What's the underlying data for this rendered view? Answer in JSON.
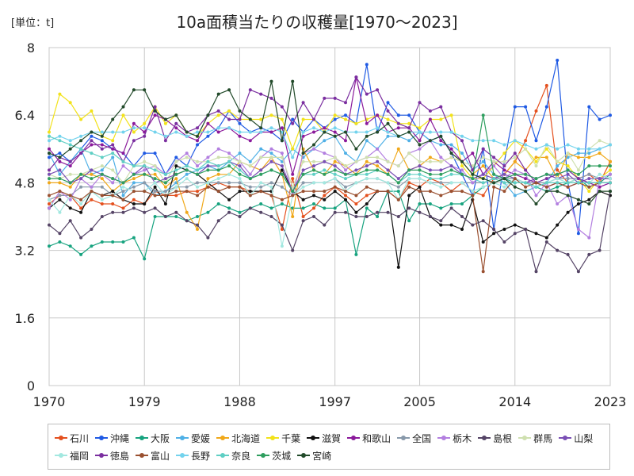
{
  "header": {
    "unit_label": "[単位：t]",
    "title": "10a面積当たりの収穫量[1970〜2023]"
  },
  "chart_data": {
    "type": "line",
    "title": "10a面積当たりの収穫量[1970〜2023]",
    "ylabel": "単位：t",
    "xlim": [
      1970,
      2023
    ],
    "ylim": [
      0,
      8
    ],
    "x_ticks": [
      1970,
      1979,
      1988,
      1997,
      2005,
      2014,
      2023
    ],
    "y_ticks": [
      0,
      1.6,
      3.2,
      4.8,
      6.4,
      8
    ],
    "y_tick_labels": [
      "0",
      "1.6",
      "3.2",
      "4.8",
      "6.4",
      "8"
    ],
    "grid": true,
    "legend_position": "bottom",
    "x": [
      1970,
      1971,
      1972,
      1973,
      1974,
      1975,
      1976,
      1977,
      1978,
      1979,
      1980,
      1981,
      1982,
      1983,
      1984,
      1985,
      1986,
      1987,
      1988,
      1989,
      1990,
      1991,
      1992,
      1993,
      1994,
      1995,
      1996,
      1997,
      1998,
      1999,
      2000,
      2001,
      2002,
      2003,
      2004,
      2005,
      2006,
      2007,
      2008,
      2009,
      2010,
      2011,
      2012,
      2013,
      2014,
      2015,
      2016,
      2017,
      2018,
      2019,
      2020,
      2021,
      2022,
      2023
    ],
    "series": [
      {
        "name": "石川",
        "color": "#e4501e",
        "values": [
          4.3,
          4.5,
          4.5,
          4.2,
          4.4,
          4.3,
          4.3,
          4.2,
          4.4,
          4.3,
          4.6,
          4.5,
          4.5,
          4.6,
          4.6,
          4.7,
          4.8,
          4.7,
          4.7,
          4.6,
          4.6,
          4.5,
          3.7,
          4.9,
          4.0,
          4.2,
          4.5,
          4.7,
          4.5,
          4.3,
          4.5,
          4.6,
          4.6,
          4.4,
          4.8,
          4.7,
          4.9,
          4.8,
          4.6,
          4.8,
          4.6,
          4.5,
          4.9,
          5.0,
          5.3,
          5.8,
          6.5,
          7.1,
          5.1,
          4.8,
          4.9,
          5.0,
          4.8,
          5.3
        ]
      },
      {
        "name": "沖縄",
        "color": "#1f5ae4",
        "values": [
          5.4,
          5.5,
          5.3,
          5.6,
          5.9,
          5.8,
          5.6,
          5.5,
          5.2,
          5.5,
          5.5,
          5.0,
          5.4,
          5.2,
          5.7,
          5.9,
          6.1,
          6.5,
          6.2,
          6.0,
          6.1,
          6.0,
          5.8,
          6.3,
          6.0,
          6.3,
          6.1,
          6.3,
          6.4,
          6.2,
          7.6,
          6.0,
          6.7,
          6.4,
          6.4,
          6.0,
          5.8,
          5.9,
          5.5,
          5.0,
          4.5,
          5.6,
          3.7,
          5.3,
          6.6,
          6.6,
          5.8,
          6.6,
          7.7,
          4.8,
          3.6,
          6.6,
          6.3,
          6.4
        ]
      },
      {
        "name": "大阪",
        "color": "#17a37f",
        "values": [
          3.3,
          3.4,
          3.3,
          3.1,
          3.3,
          3.4,
          3.4,
          3.4,
          3.5,
          3.0,
          4.0,
          4.0,
          4.0,
          3.9,
          4.0,
          4.1,
          4.3,
          4.2,
          4.1,
          4.2,
          4.3,
          4.2,
          4.3,
          4.2,
          4.2,
          4.3,
          4.2,
          4.2,
          4.4,
          3.1,
          4.2,
          4.0,
          4.6,
          4.6,
          3.9,
          4.3,
          4.3,
          4.2,
          4.3,
          4.3,
          4.5,
          4.7,
          4.8,
          4.9,
          4.8,
          4.8,
          4.7,
          4.6,
          4.7,
          4.8,
          4.9,
          4.7,
          4.8,
          5.0
        ]
      },
      {
        "name": "愛媛",
        "color": "#4fb0e6",
        "values": [
          5.5,
          5.0,
          5.3,
          5.6,
          5.0,
          5.1,
          5.4,
          4.5,
          4.8,
          4.8,
          4.5,
          4.6,
          4.8,
          5.0,
          5.1,
          5.2,
          5.1,
          5.3,
          5.5,
          5.3,
          5.6,
          5.5,
          5.3,
          5.6,
          5.4,
          5.6,
          5.8,
          5.9,
          5.5,
          5.3,
          5.8,
          5.6,
          5.9,
          5.9,
          5.8,
          6.0,
          5.8,
          5.7,
          5.7,
          5.5,
          5.1,
          5.3,
          5.0,
          4.8,
          4.5,
          4.6,
          4.7,
          4.8,
          5.2,
          5.4,
          5.5,
          5.5,
          5.6,
          5.7
        ]
      },
      {
        "name": "北海道",
        "color": "#f0a81a",
        "values": [
          4.8,
          4.8,
          4.7,
          5.0,
          5.0,
          4.9,
          4.6,
          4.8,
          4.9,
          5.0,
          5.0,
          4.7,
          4.9,
          4.1,
          3.7,
          4.9,
          5.0,
          5.0,
          5.3,
          5.2,
          5.1,
          5.4,
          5.0,
          4.0,
          5.6,
          5.1,
          5.0,
          5.3,
          5.2,
          5.0,
          5.3,
          5.2,
          5.0,
          5.6,
          5.1,
          5.2,
          5.4,
          5.3,
          5.4,
          5.3,
          5.0,
          5.2,
          4.9,
          5.0,
          5.3,
          5.1,
          5.4,
          5.4,
          4.9,
          5.5,
          5.4,
          5.4,
          5.5,
          5.3
        ]
      },
      {
        "name": "千葉",
        "color": "#f2e21a",
        "values": [
          6.0,
          6.9,
          6.7,
          6.3,
          6.5,
          5.9,
          5.8,
          6.4,
          6.0,
          6.2,
          6.6,
          6.2,
          6.4,
          6.0,
          5.9,
          6.2,
          6.4,
          6.5,
          6.3,
          6.3,
          6.3,
          6.4,
          6.3,
          5.6,
          6.3,
          6.3,
          6.0,
          6.4,
          6.3,
          6.2,
          6.3,
          6.4,
          6.3,
          6.2,
          6.2,
          6.1,
          6.3,
          6.3,
          6.4,
          5.2,
          4.9,
          4.9,
          5.2,
          5.5,
          5.8,
          5.6,
          5.3,
          5.6,
          5.3,
          5.2,
          4.9,
          4.6,
          4.9,
          5.1
        ]
      },
      {
        "name": "滋賀",
        "color": "#111111",
        "values": [
          4.2,
          4.4,
          4.2,
          4.1,
          4.6,
          4.5,
          4.6,
          4.4,
          4.3,
          4.3,
          4.7,
          4.3,
          5.2,
          5.1,
          5.0,
          4.8,
          4.6,
          4.4,
          4.6,
          4.6,
          4.6,
          4.6,
          5.1,
          4.6,
          4.4,
          4.5,
          4.4,
          4.6,
          4.4,
          4.1,
          4.3,
          4.6,
          4.6,
          2.8,
          4.5,
          4.7,
          4.0,
          3.8,
          3.8,
          3.7,
          4.4,
          3.4,
          3.6,
          3.7,
          3.8,
          3.7,
          3.6,
          3.5,
          3.8,
          4.1,
          4.3,
          4.4,
          4.6,
          4.5
        ]
      },
      {
        "name": "和歌山",
        "color": "#8b1a9b",
        "values": [
          5.6,
          5.3,
          5.2,
          5.5,
          5.7,
          5.7,
          5.6,
          5.5,
          6.2,
          6.0,
          6.4,
          6.3,
          6.1,
          5.9,
          5.8,
          6.2,
          6.0,
          6.1,
          5.9,
          5.8,
          6.0,
          6.0,
          6.1,
          5.0,
          5.9,
          6.0,
          6.1,
          6.0,
          5.8,
          7.3,
          6.2,
          6.4,
          6.0,
          6.1,
          6.1,
          5.8,
          6.3,
          5.8,
          5.6,
          5.3,
          5.5,
          5.0,
          5.3,
          5.1,
          5.0,
          4.9,
          4.8,
          4.7,
          4.8,
          4.7,
          4.8,
          4.8,
          4.7,
          4.8
        ]
      },
      {
        "name": "全国",
        "color": "#8899aa",
        "values": [
          4.4,
          4.5,
          4.5,
          4.7,
          4.7,
          4.7,
          4.5,
          4.6,
          4.7,
          4.8,
          4.6,
          4.6,
          4.7,
          4.7,
          4.8,
          4.8,
          4.8,
          4.8,
          4.8,
          4.7,
          4.7,
          4.8,
          4.7,
          4.5,
          4.8,
          4.8,
          4.8,
          4.9,
          4.7,
          4.8,
          4.9,
          4.9,
          4.8,
          4.7,
          4.9,
          4.9,
          4.8,
          4.8,
          4.8,
          4.8,
          4.8,
          4.8,
          4.9,
          4.9,
          4.9,
          4.8,
          4.8,
          4.8,
          4.9,
          4.9,
          4.9,
          5.0,
          4.9,
          4.9
        ]
      },
      {
        "name": "栃木",
        "color": "#b37fe0",
        "values": [
          4.2,
          4.6,
          4.4,
          4.9,
          4.7,
          5.0,
          4.8,
          5.2,
          5.0,
          5.1,
          5.2,
          5.0,
          5.3,
          5.5,
          5.2,
          5.4,
          5.6,
          5.5,
          5.3,
          5.0,
          5.4,
          5.6,
          5.5,
          4.5,
          5.5,
          5.6,
          5.5,
          5.4,
          5.1,
          5.3,
          5.4,
          5.6,
          5.3,
          5.2,
          5.5,
          5.6,
          5.8,
          5.4,
          5.2,
          5.1,
          4.8,
          5.0,
          5.2,
          4.9,
          5.1,
          5.0,
          4.5,
          4.8,
          4.3,
          4.5,
          3.7,
          3.5,
          4.9,
          5.0
        ]
      },
      {
        "name": "島根",
        "color": "#554466",
        "values": [
          3.8,
          3.6,
          3.9,
          3.5,
          3.7,
          4.0,
          4.1,
          4.1,
          4.2,
          4.1,
          4.2,
          4.0,
          4.1,
          3.9,
          3.8,
          3.5,
          3.9,
          4.1,
          4.0,
          4.2,
          4.1,
          4.0,
          3.8,
          3.2,
          3.9,
          4.0,
          3.8,
          4.1,
          4.1,
          4.0,
          4.0,
          4.1,
          4.1,
          4.0,
          4.2,
          4.1,
          4.0,
          3.9,
          4.2,
          4.0,
          3.8,
          3.9,
          3.7,
          3.4,
          3.6,
          3.7,
          2.7,
          3.4,
          3.2,
          3.1,
          2.7,
          3.1,
          3.2,
          4.6
        ]
      },
      {
        "name": "群馬",
        "color": "#cfe0b0",
        "values": [
          5.0,
          4.9,
          5.0,
          5.0,
          5.1,
          5.2,
          5.1,
          4.8,
          5.2,
          5.3,
          5.2,
          4.8,
          5.3,
          5.4,
          5.3,
          5.3,
          5.4,
          5.4,
          5.3,
          5.2,
          5.4,
          5.4,
          5.4,
          4.7,
          5.3,
          5.3,
          5.3,
          5.4,
          5.2,
          5.3,
          5.4,
          5.4,
          5.3,
          5.2,
          5.5,
          5.3,
          5.3,
          5.3,
          5.4,
          5.3,
          5.2,
          5.4,
          5.3,
          5.3,
          5.4,
          5.6,
          5.2,
          5.7,
          5.3,
          5.5,
          5.1,
          5.6,
          5.8,
          5.7
        ]
      },
      {
        "name": "山梨",
        "color": "#7a4fb5",
        "values": [
          5.0,
          5.1,
          4.8,
          4.9,
          5.1,
          5.0,
          4.9,
          4.8,
          5.0,
          5.2,
          4.8,
          4.9,
          5.0,
          5.1,
          5.0,
          5.2,
          5.2,
          5.3,
          5.2,
          4.9,
          5.1,
          5.3,
          5.2,
          4.6,
          5.1,
          5.2,
          5.3,
          5.2,
          5.0,
          5.1,
          5.2,
          5.3,
          5.1,
          4.9,
          5.1,
          5.2,
          5.1,
          5.1,
          5.2,
          5.0,
          4.9,
          5.0,
          4.9,
          5.0,
          4.9,
          4.8,
          4.9,
          5.0,
          4.9,
          5.0,
          4.8,
          4.9,
          4.9,
          4.9
        ]
      },
      {
        "name": "福岡",
        "color": "#a3e8e0",
        "values": [
          4.4,
          4.1,
          4.5,
          4.3,
          4.6,
          4.4,
          4.5,
          4.7,
          4.6,
          4.6,
          4.8,
          4.5,
          4.7,
          4.9,
          4.7,
          4.8,
          4.9,
          5.0,
          4.9,
          4.5,
          4.8,
          4.7,
          3.3,
          4.5,
          4.7,
          4.8,
          4.8,
          4.9,
          4.6,
          4.8,
          4.9,
          4.9,
          4.8,
          4.4,
          4.9,
          4.9,
          4.8,
          4.7,
          4.8,
          4.8,
          4.6,
          4.7,
          4.8,
          4.7,
          4.9,
          4.8,
          4.7,
          4.8,
          4.9,
          4.8,
          4.9,
          4.8,
          5.0,
          4.9
        ]
      },
      {
        "name": "徳島",
        "color": "#7b2fa0",
        "values": [
          5.1,
          5.4,
          5.3,
          5.5,
          5.8,
          5.6,
          5.7,
          5.3,
          5.8,
          5.9,
          6.6,
          5.8,
          6.2,
          6.0,
          6.1,
          6.4,
          6.5,
          6.3,
          6.3,
          7.0,
          6.9,
          6.8,
          6.6,
          6.2,
          6.7,
          6.3,
          6.8,
          6.8,
          6.7,
          7.3,
          6.9,
          7.0,
          6.5,
          6.2,
          6.1,
          6.7,
          6.5,
          6.6,
          6.0,
          5.8,
          5.1,
          5.6,
          5.4,
          5.2,
          5.5,
          5.1,
          4.8,
          4.9,
          5.0,
          5.1,
          4.9,
          4.8,
          4.8,
          4.8
        ]
      },
      {
        "name": "富山",
        "color": "#9a5030",
        "values": [
          4.5,
          4.6,
          4.5,
          4.4,
          4.6,
          4.5,
          4.5,
          4.4,
          4.6,
          4.6,
          4.5,
          4.5,
          4.6,
          4.6,
          4.5,
          4.7,
          4.6,
          4.7,
          4.7,
          4.5,
          4.6,
          4.5,
          4.4,
          4.5,
          4.6,
          4.6,
          4.6,
          4.7,
          4.6,
          4.5,
          4.7,
          4.6,
          4.6,
          4.4,
          4.7,
          4.6,
          4.6,
          4.5,
          4.6,
          4.6,
          4.5,
          2.7,
          4.7,
          4.6,
          4.9,
          4.7,
          4.8,
          4.7,
          4.8,
          4.7,
          4.8,
          4.7,
          4.8,
          4.8
        ]
      },
      {
        "name": "長野",
        "color": "#73d3ed",
        "values": [
          5.8,
          5.9,
          5.8,
          5.9,
          6.0,
          6.0,
          6.0,
          6.0,
          6.1,
          6.1,
          6.0,
          5.9,
          6.0,
          5.9,
          6.0,
          6.0,
          6.1,
          6.1,
          6.0,
          6.0,
          6.0,
          6.1,
          6.0,
          5.4,
          6.0,
          6.1,
          6.0,
          6.1,
          6.0,
          6.0,
          6.0,
          6.1,
          6.0,
          5.9,
          6.0,
          6.0,
          6.0,
          6.0,
          6.0,
          5.9,
          5.8,
          5.8,
          5.8,
          5.7,
          5.8,
          5.7,
          5.6,
          5.7,
          5.6,
          5.7,
          5.6,
          5.6,
          5.6,
          5.7
        ]
      },
      {
        "name": "奈良",
        "color": "#5fcfc4",
        "values": [
          5.9,
          5.8,
          5.7,
          5.6,
          5.5,
          5.4,
          5.5,
          5.3,
          5.2,
          5.2,
          5.1,
          5.0,
          5.1,
          5.2,
          5.1,
          5.3,
          5.2,
          5.3,
          5.1,
          4.9,
          5.0,
          5.1,
          5.0,
          4.6,
          5.0,
          5.0,
          5.1,
          5.0,
          4.9,
          5.0,
          5.0,
          5.1,
          5.0,
          4.8,
          5.0,
          5.0,
          4.9,
          4.9,
          5.0,
          5.0,
          4.9,
          4.8,
          4.9,
          4.8,
          4.8,
          4.8,
          4.7,
          4.8,
          4.8,
          4.8,
          4.8,
          4.8,
          4.8,
          4.8
        ]
      },
      {
        "name": "茨城",
        "color": "#2e9e5e",
        "values": [
          4.9,
          4.9,
          4.8,
          5.0,
          4.9,
          5.0,
          4.9,
          4.8,
          5.0,
          5.0,
          4.9,
          4.8,
          5.0,
          5.1,
          5.0,
          5.1,
          5.1,
          5.2,
          5.0,
          4.9,
          5.0,
          5.1,
          5.0,
          4.6,
          5.0,
          5.1,
          5.0,
          5.1,
          5.0,
          5.0,
          5.1,
          5.1,
          5.0,
          4.8,
          5.1,
          5.1,
          5.0,
          5.0,
          5.1,
          5.0,
          4.9,
          6.4,
          5.0,
          4.9,
          5.0,
          5.0,
          4.9,
          5.0,
          5.0,
          5.1,
          5.0,
          5.2,
          5.2,
          5.2
        ]
      },
      {
        "name": "宮崎",
        "color": "#224a2a",
        "values": [
          5.5,
          5.4,
          5.6,
          5.8,
          6.0,
          5.9,
          6.3,
          6.6,
          7.0,
          7.0,
          6.5,
          6.3,
          6.4,
          6.0,
          5.9,
          6.4,
          6.9,
          7.0,
          6.5,
          6.3,
          6.1,
          7.2,
          5.8,
          7.2,
          5.5,
          5.7,
          6.0,
          5.9,
          6.0,
          5.6,
          5.9,
          6.0,
          6.2,
          5.9,
          6.0,
          5.7,
          5.8,
          5.9,
          5.5,
          5.3,
          5.0,
          4.9,
          4.8,
          4.9,
          4.7,
          4.6,
          4.3,
          4.6,
          4.6,
          4.5,
          4.4,
          4.3,
          4.6,
          4.6
        ]
      }
    ]
  }
}
